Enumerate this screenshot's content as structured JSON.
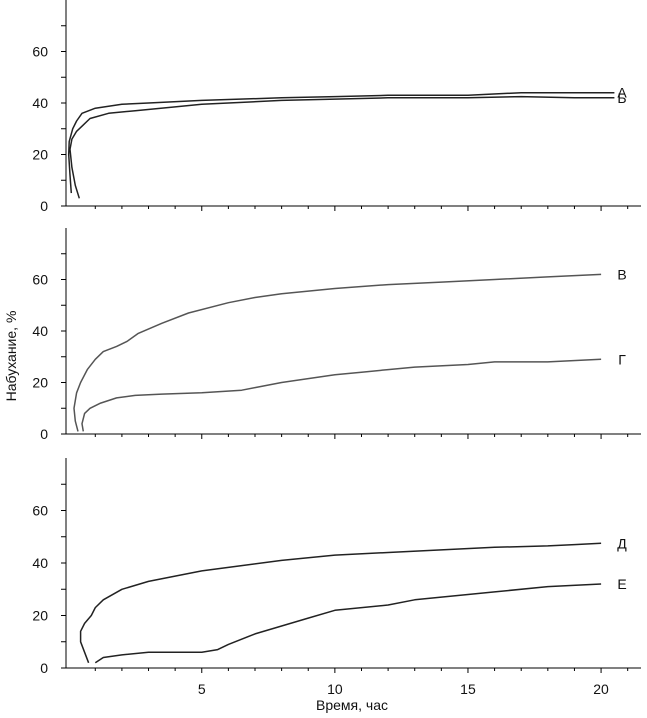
{
  "chart_data": [
    {
      "type": "line",
      "panel": "top",
      "ylim": [
        0,
        80
      ],
      "yticks": [
        0,
        20,
        40,
        60
      ],
      "xlim": [
        -0.1,
        21.5
      ],
      "series": [
        {
          "name": "А",
          "color": "#222222",
          "points": [
            [
              0.1,
              5
            ],
            [
              0.05,
              12
            ],
            [
              0.0,
              20
            ],
            [
              0.02,
              25
            ],
            [
              0.15,
              30
            ],
            [
              0.3,
              33
            ],
            [
              0.5,
              36
            ],
            [
              1,
              38
            ],
            [
              2,
              39.5
            ],
            [
              3,
              40
            ],
            [
              5,
              41
            ],
            [
              8,
              42
            ],
            [
              10,
              42.5
            ],
            [
              12,
              43
            ],
            [
              15,
              43
            ],
            [
              17,
              44
            ],
            [
              19,
              44
            ],
            [
              20.5,
              44
            ]
          ]
        },
        {
          "name": "Б",
          "color": "#222222",
          "points": [
            [
              0.4,
              3
            ],
            [
              0.25,
              8
            ],
            [
              0.12,
              15
            ],
            [
              0.05,
              22
            ],
            [
              0.12,
              26
            ],
            [
              0.3,
              29
            ],
            [
              0.5,
              31
            ],
            [
              0.8,
              34
            ],
            [
              1.5,
              36
            ],
            [
              2.5,
              37
            ],
            [
              4,
              38.5
            ],
            [
              5,
              39.5
            ],
            [
              6,
              40
            ],
            [
              8,
              41
            ],
            [
              10,
              41.5
            ],
            [
              12,
              42
            ],
            [
              15,
              42
            ],
            [
              17,
              42.5
            ],
            [
              19,
              42
            ],
            [
              20.5,
              42
            ]
          ]
        }
      ]
    },
    {
      "type": "line",
      "panel": "middle",
      "ylim": [
        0,
        80
      ],
      "yticks": [
        0,
        20,
        40,
        60
      ],
      "xlim": [
        -0.1,
        21.5
      ],
      "series": [
        {
          "name": "В",
          "color": "#555555",
          "points": [
            [
              0.35,
              1
            ],
            [
              0.25,
              5
            ],
            [
              0.2,
              10
            ],
            [
              0.3,
              16
            ],
            [
              0.45,
              20
            ],
            [
              0.7,
              25
            ],
            [
              1.0,
              29
            ],
            [
              1.3,
              32
            ],
            [
              1.8,
              34
            ],
            [
              2.2,
              36
            ],
            [
              2.6,
              39
            ],
            [
              3.5,
              43
            ],
            [
              4.5,
              47
            ],
            [
              6,
              51
            ],
            [
              7,
              53
            ],
            [
              8,
              54.5
            ],
            [
              10,
              56.5
            ],
            [
              12,
              58
            ],
            [
              14,
              59
            ],
            [
              16,
              60
            ],
            [
              18,
              61
            ],
            [
              20,
              62
            ]
          ]
        },
        {
          "name": "Г",
          "color": "#555555",
          "points": [
            [
              0.55,
              1
            ],
            [
              0.5,
              4
            ],
            [
              0.6,
              8
            ],
            [
              0.8,
              10
            ],
            [
              1.2,
              12
            ],
            [
              1.8,
              14
            ],
            [
              2.5,
              15
            ],
            [
              3.5,
              15.5
            ],
            [
              5,
              16
            ],
            [
              6.5,
              17
            ],
            [
              7,
              18
            ],
            [
              8,
              20
            ],
            [
              9,
              21.5
            ],
            [
              10,
              23
            ],
            [
              11,
              24
            ],
            [
              12,
              25
            ],
            [
              13,
              26
            ],
            [
              15,
              27
            ],
            [
              16,
              28
            ],
            [
              18,
              28
            ],
            [
              20,
              29
            ]
          ]
        }
      ]
    },
    {
      "type": "line",
      "panel": "bottom",
      "xlabel": "Время, час",
      "ylim": [
        0,
        80
      ],
      "yticks": [
        0,
        20,
        40,
        60
      ],
      "xlim": [
        -0.1,
        21.5
      ],
      "xticks": [
        5,
        10,
        15,
        20
      ],
      "series": [
        {
          "name": "Д",
          "color": "#222222",
          "points": [
            [
              0.75,
              2
            ],
            [
              0.6,
              6
            ],
            [
              0.45,
              10
            ],
            [
              0.45,
              14
            ],
            [
              0.6,
              17
            ],
            [
              0.85,
              20
            ],
            [
              1.0,
              23
            ],
            [
              1.3,
              26
            ],
            [
              2,
              30
            ],
            [
              3,
              33
            ],
            [
              4,
              35
            ],
            [
              5,
              37
            ],
            [
              6.5,
              39
            ],
            [
              8,
              41
            ],
            [
              10,
              43
            ],
            [
              12,
              44
            ],
            [
              14,
              45
            ],
            [
              16,
              46
            ],
            [
              18,
              46.5
            ],
            [
              19,
              47
            ],
            [
              20,
              47.5
            ]
          ]
        },
        {
          "name": "Е",
          "color": "#222222",
          "points": [
            [
              1.0,
              2
            ],
            [
              1.3,
              4
            ],
            [
              2,
              5
            ],
            [
              3,
              6
            ],
            [
              4,
              6
            ],
            [
              5,
              6
            ],
            [
              5.6,
              7
            ],
            [
              6,
              9
            ],
            [
              7,
              13
            ],
            [
              8,
              16
            ],
            [
              9,
              19
            ],
            [
              10,
              22
            ],
            [
              12,
              24
            ],
            [
              13,
              26
            ],
            [
              14,
              27
            ],
            [
              15,
              28
            ],
            [
              16,
              29
            ],
            [
              18,
              31
            ],
            [
              20,
              32
            ]
          ]
        }
      ]
    }
  ],
  "yaxis_label": "Набухание, %"
}
